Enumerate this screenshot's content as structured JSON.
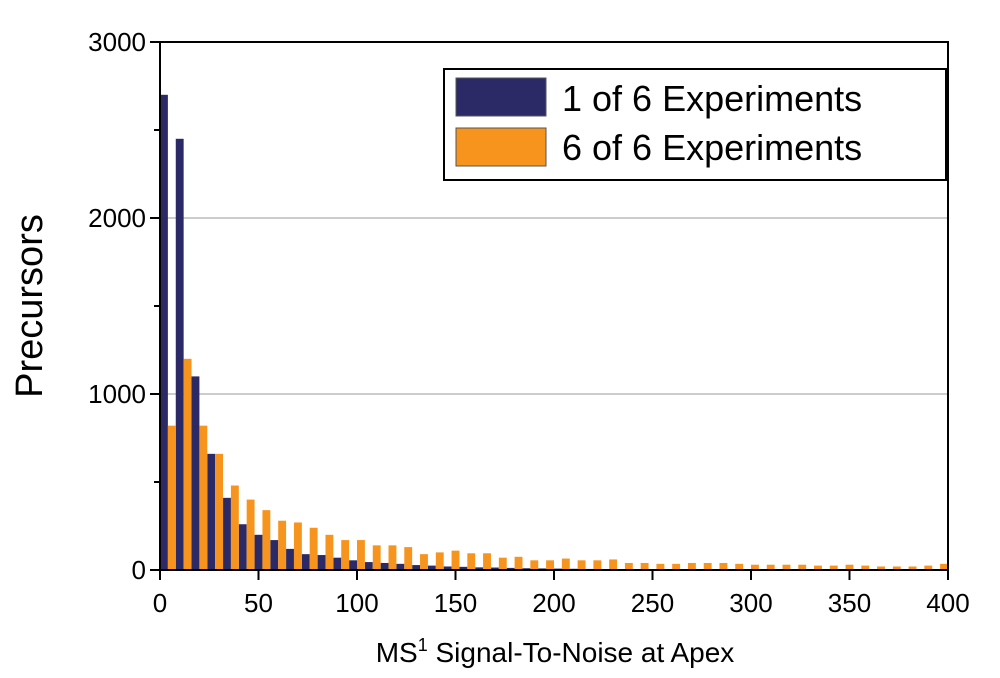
{
  "chart_data": {
    "type": "bar",
    "xlabel_main": "MS",
    "xlabel_sup": "1",
    "xlabel_rest": " Signal-To-Noise at Apex",
    "ylabel": "Precursors",
    "xlim": [
      0,
      400
    ],
    "ylim": [
      0,
      3000
    ],
    "x_ticks": [
      0,
      50,
      100,
      150,
      200,
      250,
      300,
      350,
      400
    ],
    "y_ticks": [
      0,
      1000,
      2000,
      3000
    ],
    "y_gridlines": [
      1000,
      2000
    ],
    "bin_width": 8,
    "bin_starts": [
      0,
      8,
      16,
      24,
      32,
      40,
      48,
      56,
      64,
      72,
      80,
      88,
      96,
      104,
      112,
      120,
      128,
      136,
      144,
      152,
      160,
      168,
      176,
      184,
      192,
      200,
      208,
      216,
      224,
      232,
      240,
      248,
      256,
      264,
      272,
      280,
      288,
      296,
      304,
      312,
      320,
      328,
      336,
      344,
      352,
      360,
      368,
      376,
      384,
      392
    ],
    "series": [
      {
        "name": "1 of 6 Experiments",
        "color": "#2b2a66",
        "values": [
          2700,
          2450,
          1100,
          660,
          410,
          260,
          200,
          170,
          120,
          90,
          85,
          70,
          55,
          45,
          40,
          35,
          28,
          25,
          20,
          18,
          15,
          14,
          12,
          10,
          9,
          8,
          7,
          6,
          5,
          5,
          4,
          4,
          4,
          3,
          3,
          3,
          2,
          2,
          2,
          2,
          2,
          2,
          1,
          1,
          1,
          1,
          1,
          1,
          1,
          1
        ]
      },
      {
        "name": "6 of 6 Experiments",
        "color": "#f7941d",
        "values": [
          820,
          1200,
          820,
          660,
          480,
          400,
          340,
          280,
          270,
          240,
          200,
          170,
          170,
          140,
          140,
          130,
          90,
          100,
          110,
          95,
          95,
          70,
          75,
          55,
          55,
          65,
          55,
          55,
          60,
          40,
          40,
          35,
          35,
          40,
          40,
          40,
          35,
          30,
          30,
          30,
          30,
          25,
          25,
          30,
          25,
          20,
          20,
          20,
          25,
          35
        ]
      }
    ],
    "legend_position": "top-right",
    "grid": "horizontal at 1000 and 2000"
  }
}
